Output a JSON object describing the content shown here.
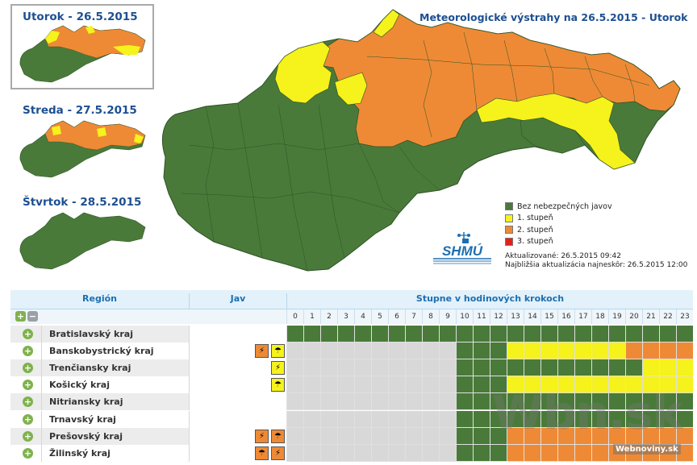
{
  "main_title": "Meteorologické výstrahy na 26.5.2015 - Utorok",
  "thumbnails": [
    {
      "title": "Utorok - 26.5.2015",
      "selected": true
    },
    {
      "title": "Streda - 27.5.2015",
      "selected": false
    },
    {
      "title": "Štvrtok - 28.5.2015",
      "selected": false
    }
  ],
  "colors": {
    "green": "#4a7a3a",
    "yellow": "#f6f21c",
    "orange": "#ee8a35",
    "red": "#e32119",
    "grid_gray": "#d8d8d8"
  },
  "legend": [
    {
      "label": "Bez nebezpečných javov",
      "color": "#4a7a3a"
    },
    {
      "label": "1. stupeň",
      "color": "#f6f21c"
    },
    {
      "label": "2. stupeň",
      "color": "#ee8a35"
    },
    {
      "label": "3. stupeň",
      "color": "#e32119"
    }
  ],
  "logo_text": "SHMÚ",
  "update": {
    "updated": "Aktualizované: 26.5.2015 09:42",
    "next": "Najbližšia aktualizácia najneskôr: 26.5.2015 12:00"
  },
  "table": {
    "col_region": "Región",
    "col_jav": "Jav",
    "col_steps": "Stupne v hodinových krokoch",
    "hours": [
      "0",
      "1",
      "2",
      "3",
      "4",
      "5",
      "6",
      "7",
      "8",
      "9",
      "10",
      "11",
      "12",
      "13",
      "14",
      "15",
      "16",
      "17",
      "18",
      "19",
      "20",
      "21",
      "22",
      "23"
    ],
    "rows": [
      {
        "name": "Bratislavský kraj",
        "icons": [],
        "levels": "gggggggggggggggggggggggg"
      },
      {
        "name": "Banskobystrický kraj",
        "icons": [
          {
            "name": "storm-icon",
            "color": "#ee8a35",
            "glyph": "⚡"
          },
          {
            "name": "rain-icon",
            "color": "#f6f21c",
            "glyph": "☂"
          }
        ],
        "levels": "xxxxxxxxxxgggyyyyyyyoooo"
      },
      {
        "name": "Trenčiansky kraj",
        "icons": [
          {
            "name": "storm-icon",
            "color": "#f6f21c",
            "glyph": "⚡"
          }
        ],
        "levels": "xxxxxxxxxxgggggggggggyyy"
      },
      {
        "name": "Košický kraj",
        "icons": [
          {
            "name": "rain-icon",
            "color": "#f6f21c",
            "glyph": "☂"
          }
        ],
        "levels": "xxxxxxxxxxgggyyyyyyyyyyy"
      },
      {
        "name": "Nitriansky kraj",
        "icons": [],
        "levels": "xxxxxxxxxxgggggggggggggg"
      },
      {
        "name": "Trnavský kraj",
        "icons": [],
        "levels": "xxxxxxxxxxgggggggggggggg"
      },
      {
        "name": "Prešovský kraj",
        "icons": [
          {
            "name": "storm-icon",
            "color": "#ee8a35",
            "glyph": "⚡"
          },
          {
            "name": "rain-icon",
            "color": "#ee8a35",
            "glyph": "☂"
          }
        ],
        "levels": "xxxxxxxxxxgggooooooooooo"
      },
      {
        "name": "Žilinský kraj",
        "icons": [
          {
            "name": "rain-icon",
            "color": "#ee8a35",
            "glyph": "☂"
          },
          {
            "name": "storm-icon",
            "color": "#ee8a35",
            "glyph": "⚡"
          }
        ],
        "levels": "xxxxxxxxxxgggooooooooooo"
      }
    ]
  },
  "watermark": "Wbn.sk",
  "watermark_sub": "Webnoviny.sk"
}
